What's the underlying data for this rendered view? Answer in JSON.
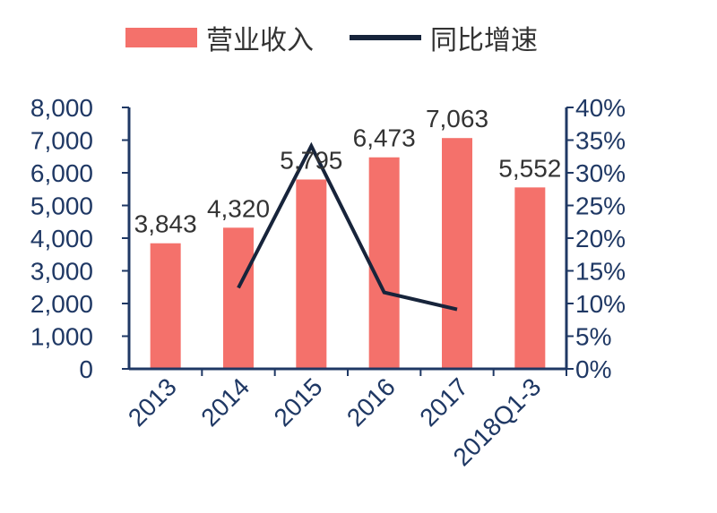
{
  "chart_data": {
    "type": "bar+line",
    "categories": [
      "2013",
      "2014",
      "2015",
      "2016",
      "2017",
      "2018Q1-3"
    ],
    "series": [
      {
        "name": "营业收入",
        "type": "bar",
        "axis": "left",
        "color": "#f4716b",
        "values": [
          3843,
          4320,
          5795,
          6473,
          7063,
          5552
        ],
        "labels": [
          "3,843",
          "4,320",
          "5,795",
          "6,473",
          "7,063",
          "5,552"
        ]
      },
      {
        "name": "同比增速",
        "type": "line",
        "axis": "right",
        "color": "#17243b",
        "values": [
          null,
          12.4,
          34.1,
          11.7,
          9.1,
          null
        ]
      }
    ],
    "y_left": {
      "range": [
        0,
        8000
      ],
      "ticks": [
        "0",
        "1,000",
        "2,000",
        "3,000",
        "4,000",
        "5,000",
        "6,000",
        "7,000",
        "8,000"
      ]
    },
    "y_right": {
      "range": [
        0,
        40
      ],
      "ticks": [
        "0%",
        "5%",
        "10%",
        "15%",
        "20%",
        "25%",
        "30%",
        "35%",
        "40%"
      ]
    },
    "axis_color": "#1f3864",
    "legend_position": "top",
    "grid": false
  }
}
